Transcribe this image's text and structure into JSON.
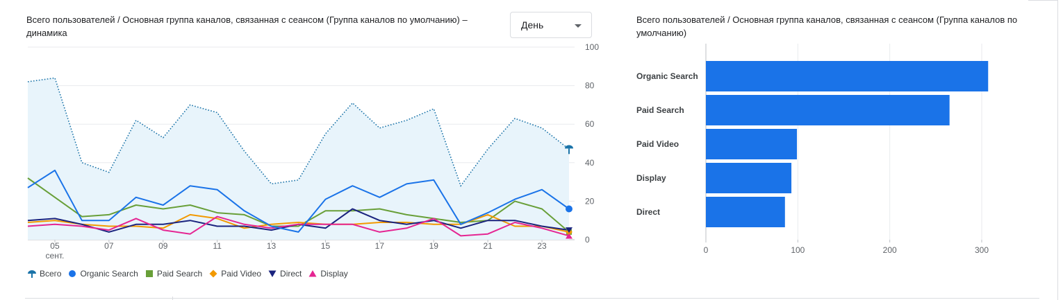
{
  "left_card": {
    "title": "Всего пользователей / Основная группа каналов, связанная с сеансом (Группа каналов по умолчанию) – динамика",
    "granularity": {
      "selected": "День"
    }
  },
  "right_card": {
    "title": "Всего пользователей / Основная группа каналов, связанная с сеансом (Группа каналов по умолчанию)"
  },
  "legend": [
    {
      "label": "Всего",
      "color": "#1a73a8",
      "marker": "pin"
    },
    {
      "label": "Organic Search",
      "color": "#1a73e8",
      "marker": "circle"
    },
    {
      "label": "Paid Search",
      "color": "#689f38",
      "marker": "square"
    },
    {
      "label": "Paid Video",
      "color": "#f29900",
      "marker": "diamond"
    },
    {
      "label": "Direct",
      "color": "#1a237e",
      "marker": "triangle-down"
    },
    {
      "label": "Display",
      "color": "#e52592",
      "marker": "triangle-up"
    }
  ],
  "chart_data": [
    {
      "type": "line",
      "x": [
        4,
        5,
        6,
        7,
        8,
        9,
        10,
        11,
        12,
        13,
        14,
        15,
        16,
        17,
        18,
        19,
        20,
        21,
        22,
        23,
        24
      ],
      "xticks": [
        {
          "day": 5,
          "label": "05",
          "sublabel": "сент."
        },
        {
          "day": 7,
          "label": "07"
        },
        {
          "day": 9,
          "label": "09"
        },
        {
          "day": 11,
          "label": "11"
        },
        {
          "day": 13,
          "label": "13"
        },
        {
          "day": 15,
          "label": "15"
        },
        {
          "day": 17,
          "label": "17"
        },
        {
          "day": 19,
          "label": "19"
        },
        {
          "day": 21,
          "label": "21"
        },
        {
          "day": 23,
          "label": "23"
        }
      ],
      "yticks": [
        0,
        20,
        40,
        60,
        80,
        100
      ],
      "ylim": [
        0,
        100
      ],
      "series": [
        {
          "name": "Всего",
          "color": "#1a73a8",
          "style": "dotted-area",
          "values": [
            82,
            84,
            40,
            35,
            62,
            53,
            70,
            66,
            46,
            29,
            31,
            55,
            71,
            58,
            62,
            68,
            28,
            47,
            63,
            58,
            47
          ]
        },
        {
          "name": "Organic Search",
          "color": "#1a73e8",
          "values": [
            27,
            36,
            10,
            10,
            22,
            18,
            28,
            26,
            15,
            7,
            4,
            21,
            28,
            22,
            29,
            31,
            8,
            14,
            21,
            26,
            16
          ]
        },
        {
          "name": "Paid Search",
          "color": "#689f38",
          "values": [
            32,
            22,
            12,
            13,
            18,
            16,
            18,
            14,
            13,
            7,
            7,
            15,
            15,
            16,
            13,
            11,
            9,
            10,
            20,
            16,
            4
          ]
        },
        {
          "name": "Paid Video",
          "color": "#f29900",
          "values": [
            9,
            10,
            8,
            7,
            7,
            6,
            13,
            11,
            6,
            8,
            9,
            8,
            8,
            9,
            9,
            8,
            8,
            13,
            7,
            7,
            4
          ]
        },
        {
          "name": "Direct",
          "color": "#1a237e",
          "values": [
            10,
            11,
            8,
            4,
            8,
            8,
            10,
            7,
            7,
            5,
            8,
            6,
            16,
            10,
            8,
            10,
            6,
            10,
            10,
            7,
            5
          ]
        },
        {
          "name": "Display",
          "color": "#e52592",
          "values": [
            7,
            8,
            7,
            5,
            11,
            5,
            3,
            12,
            8,
            6,
            8,
            8,
            8,
            4,
            6,
            11,
            2,
            3,
            9,
            6,
            2
          ]
        }
      ]
    },
    {
      "type": "bar",
      "orientation": "horizontal",
      "categories": [
        "Organic Search",
        "Paid Search",
        "Paid Video",
        "Display",
        "Direct"
      ],
      "values": [
        307,
        265,
        99,
        93,
        86
      ],
      "xticks": [
        0,
        100,
        200,
        300
      ],
      "xlim": [
        0,
        320
      ],
      "color": "#1a73e8"
    }
  ]
}
